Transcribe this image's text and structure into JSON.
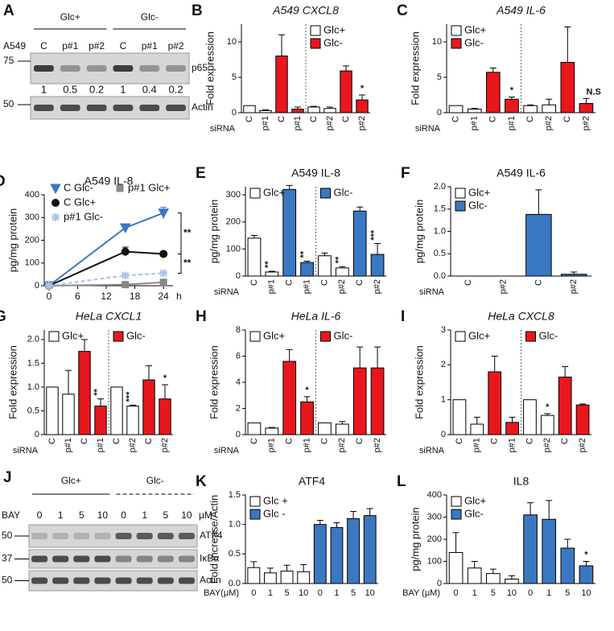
{
  "blots": [
    {
      "label": "A",
      "cell_line": "A549",
      "groups": [
        "Glc+",
        "Glc-"
      ],
      "lanes": [
        "C",
        "p#1",
        "p#2",
        "C",
        "p#1",
        "p#2"
      ],
      "markers": [
        75,
        50
      ],
      "bands": [
        "p65",
        "Actin"
      ],
      "quant": [
        1,
        0.5,
        0.2,
        1,
        0.4,
        0.2
      ]
    },
    {
      "label": "J",
      "treatment": "BAY",
      "groups": [
        "Glc+",
        "Glc-"
      ],
      "lanes": [
        0,
        1,
        5,
        10,
        0,
        1,
        5,
        10
      ],
      "unit": "μM",
      "markers": [
        50,
        37,
        50
      ],
      "bands": [
        "ATF4",
        "IκBα",
        "Actin"
      ]
    }
  ],
  "chart_data": [
    {
      "label": "B",
      "type": "bar",
      "title": "A549 CXCL8",
      "title_style": "italic",
      "ylabel": "Fold expression",
      "xlabel": "siRNA",
      "xtick_rotation": 90,
      "divider": true,
      "legend": "upper right",
      "legend_orient": "vertical",
      "categories": [
        "C",
        "p#1",
        "C",
        "p#1",
        "C",
        "p#2",
        "C",
        "p#2"
      ],
      "ylim": [
        0,
        12.5
      ],
      "yticks": [
        0,
        5,
        10
      ],
      "series": [
        {
          "name": "Glc+",
          "color": "#ffffff",
          "values": [
            1.0,
            0.3,
            null,
            null,
            0.8,
            0.6,
            null,
            null
          ],
          "errors": [
            0,
            0.1,
            null,
            null,
            0.1,
            0.2,
            null,
            null
          ]
        },
        {
          "name": "Glc-",
          "color": "#e8171d",
          "values": [
            null,
            null,
            8,
            0.5,
            null,
            null,
            5.9,
            1.8
          ],
          "errors": [
            null,
            null,
            3,
            0.3,
            null,
            null,
            0.7,
            0.7
          ],
          "sig": [
            null,
            null,
            null,
            null,
            null,
            null,
            null,
            "*"
          ]
        }
      ]
    },
    {
      "label": "C",
      "type": "bar",
      "title": "A549 IL-6",
      "title_style": "italic",
      "ylabel": "Fold expression",
      "xlabel": "siRNA",
      "xtick_rotation": 90,
      "divider": true,
      "legend": "upper left",
      "legend_orient": "vertical",
      "categories": [
        "C",
        "p#1",
        "C",
        "p#1",
        "C",
        "p#2",
        "C",
        "p#2"
      ],
      "ylim": [
        0,
        12.5
      ],
      "yticks": [
        0,
        5,
        10
      ],
      "series": [
        {
          "name": "Glc+",
          "color": "#ffffff",
          "values": [
            1.0,
            0.5,
            null,
            null,
            1.0,
            1.1,
            null,
            null
          ],
          "errors": [
            0,
            0.1,
            null,
            null,
            0.1,
            0.8,
            null,
            null
          ]
        },
        {
          "name": "Glc-",
          "color": "#e8171d",
          "values": [
            null,
            null,
            5.7,
            1.9,
            null,
            null,
            7.1,
            1.3
          ],
          "errors": [
            null,
            null,
            0.6,
            0.3,
            null,
            null,
            5,
            0.7
          ],
          "sig": [
            null,
            null,
            null,
            "*",
            null,
            null,
            null,
            "N.S"
          ]
        }
      ]
    },
    {
      "label": "D",
      "type": "line",
      "title": "A549 IL-8",
      "ylabel": "pg/mg protein",
      "xlabel": "h",
      "xlim": [
        -1,
        26
      ],
      "xticks": [
        0,
        6,
        12,
        18,
        24
      ],
      "ylim": [
        0,
        400
      ],
      "yticks": [
        0,
        100,
        200,
        300,
        400
      ],
      "x": [
        0,
        16,
        24
      ],
      "annotations": [
        "**",
        "**"
      ],
      "series": [
        {
          "name": "C Glc-",
          "color": "#3a78c2",
          "marker": "triangle",
          "dash": false,
          "values": [
            0,
            255,
            320
          ],
          "errors": [
            0,
            10,
            25
          ]
        },
        {
          "name": "C Glc+",
          "color": "#111111",
          "marker": "circle",
          "dash": false,
          "values": [
            0,
            150,
            140
          ],
          "errors": [
            0,
            20,
            10
          ]
        },
        {
          "name": "p#1 Glc+",
          "color": "#888888",
          "marker": "square",
          "dash": false,
          "values": [
            0,
            5,
            15
          ],
          "errors": [
            0,
            3,
            5
          ]
        },
        {
          "name": "p#1 Glc-",
          "color": "#a9c4e6",
          "marker": "star",
          "dash": true,
          "values": [
            0,
            45,
            55
          ],
          "errors": [
            0,
            5,
            5
          ]
        }
      ]
    },
    {
      "label": "E",
      "type": "bar",
      "title": "A549 IL-8",
      "ylabel": "pg/mg protein",
      "xlabel": "siRNA",
      "xtick_rotation": 90,
      "divider": true,
      "legend": "upper left",
      "legend_orient": "horizontal",
      "categories": [
        "C",
        "p#1",
        "C",
        "p#1",
        "C",
        "p#2",
        "C",
        "p#2"
      ],
      "ylim": [
        0,
        330
      ],
      "yticks": [
        0,
        100,
        200,
        300
      ],
      "series": [
        {
          "name": "Glc+",
          "color": "#ffffff",
          "values": [
            140,
            15,
            null,
            null,
            75,
            30,
            null,
            null
          ],
          "errors": [
            10,
            3,
            null,
            null,
            10,
            5,
            null,
            null
          ],
          "sig": [
            null,
            "**",
            null,
            null,
            null,
            "**",
            null,
            null
          ]
        },
        {
          "name": "Glc-",
          "color": "#3a78c2",
          "values": [
            null,
            null,
            320,
            50,
            null,
            null,
            240,
            80
          ],
          "errors": [
            null,
            null,
            15,
            5,
            null,
            null,
            15,
            40
          ],
          "sig": [
            null,
            null,
            null,
            "**",
            null,
            null,
            null,
            "***"
          ]
        }
      ]
    },
    {
      "label": "F",
      "type": "bar",
      "title": "A549 IL-6",
      "ylabel": "pg/mg protein",
      "xlabel": "siRNA",
      "xtick_rotation": 90,
      "divider": false,
      "legend": "upper left",
      "legend_orient": "vertical",
      "categories": [
        "C",
        "p#2",
        "C",
        "p#2"
      ],
      "ylim": [
        0,
        2
      ],
      "yticks": [
        {
          "value": 0,
          "label": "0.0"
        },
        0.5,
        {
          "value": 1,
          "label": "1.0"
        },
        1.5,
        {
          "value": 2,
          "label": "2.0"
        }
      ],
      "series": [
        {
          "name": "Glc+",
          "color": "#ffffff",
          "values": [
            0,
            0,
            null,
            null
          ],
          "errors": [
            0,
            0,
            null,
            null
          ]
        },
        {
          "name": "Glc-",
          "color": "#3a78c2",
          "values": [
            null,
            null,
            1.38,
            0.04
          ],
          "errors": [
            null,
            null,
            0.55,
            0.05
          ]
        }
      ]
    },
    {
      "label": "G",
      "type": "bar",
      "title": "HeLa CXCL1",
      "title_style": "italic",
      "ylabel": "Fold expression",
      "xlabel": "siRNA",
      "xtick_rotation": 90,
      "divider": true,
      "legend": "upper left",
      "legend_orient": "horizontal",
      "categories": [
        "C",
        "p#1",
        "C",
        "p#1",
        "C",
        "p#2",
        "C",
        "p#2"
      ],
      "ylim": [
        0,
        2.2
      ],
      "yticks": [
        0,
        0.5,
        {
          "value": 1,
          "label": "1.0"
        },
        1.5,
        {
          "value": 2,
          "label": "2.0"
        }
      ],
      "series": [
        {
          "name": "Glc+",
          "color": "#ffffff",
          "values": [
            1.0,
            0.85,
            null,
            null,
            1.0,
            0.6,
            null,
            null
          ],
          "errors": [
            0,
            0.5,
            null,
            null,
            0,
            0.02,
            null,
            null
          ],
          "sig": [
            null,
            null,
            null,
            null,
            null,
            "***",
            null,
            null
          ]
        },
        {
          "name": "Glc-",
          "color": "#e8171d",
          "values": [
            null,
            null,
            1.75,
            0.6,
            null,
            null,
            1.15,
            0.75
          ],
          "errors": [
            null,
            null,
            0.25,
            0.15,
            null,
            null,
            0.3,
            0.3
          ],
          "sig": [
            null,
            null,
            null,
            "**",
            null,
            null,
            null,
            "*"
          ]
        }
      ]
    },
    {
      "label": "H",
      "type": "bar",
      "title": "HeLa IL-6",
      "title_style": "italic",
      "ylabel": "Fold expression",
      "xlabel": "siRNA",
      "xtick_rotation": 90,
      "divider": true,
      "legend": "upper left",
      "legend_orient": "horizontal",
      "categories": [
        "C",
        "p#1",
        "C",
        "p#1",
        "C",
        "p#2",
        "C",
        "p#2"
      ],
      "ylim": [
        0,
        8
      ],
      "yticks": [
        0,
        2,
        4,
        6,
        8
      ],
      "series": [
        {
          "name": "Glc+",
          "color": "#ffffff",
          "values": [
            0.9,
            0.5,
            null,
            null,
            0.9,
            0.8,
            null,
            null
          ],
          "errors": [
            0,
            0.05,
            null,
            null,
            0,
            0.2,
            null,
            null
          ]
        },
        {
          "name": "Glc-",
          "color": "#e8171d",
          "values": [
            null,
            null,
            5.6,
            2.5,
            null,
            null,
            5.1,
            5.1
          ],
          "errors": [
            null,
            null,
            0.9,
            0.4,
            null,
            null,
            1.6,
            1.6
          ],
          "sig": [
            null,
            null,
            null,
            "*",
            null,
            null,
            null,
            null
          ]
        }
      ]
    },
    {
      "label": "I",
      "type": "bar",
      "title": "HeLa CXCL8",
      "title_style": "italic",
      "ylabel": "Fold expression",
      "xlabel": "siRNA",
      "xtick_rotation": 90,
      "divider": true,
      "legend": "upper left",
      "legend_orient": "horizontal",
      "categories": [
        "C",
        "p#1",
        "C",
        "p#1",
        "C",
        "p#2",
        "C",
        "p#2"
      ],
      "ylim": [
        0,
        3
      ],
      "yticks": [
        0,
        1,
        2,
        3
      ],
      "series": [
        {
          "name": "Glc+",
          "color": "#ffffff",
          "values": [
            1.0,
            0.3,
            null,
            null,
            1.0,
            0.55,
            null,
            null
          ],
          "errors": [
            0,
            0.2,
            null,
            null,
            0,
            0.05,
            null,
            null
          ],
          "sig": [
            null,
            null,
            null,
            null,
            null,
            "*",
            null,
            null
          ]
        },
        {
          "name": "Glc-",
          "color": "#e8171d",
          "values": [
            null,
            null,
            1.8,
            0.35,
            null,
            null,
            1.65,
            0.85
          ],
          "errors": [
            null,
            null,
            0.45,
            0.15,
            null,
            null,
            0.3,
            0.03
          ]
        }
      ]
    },
    {
      "label": "K",
      "type": "bar",
      "title": "ATF4",
      "ylabel": "Fold increase/Actin",
      "xlabel": "BAY(μM)",
      "xtick_rotation": 0,
      "divider": false,
      "legend": "upper left",
      "legend_orient": "vertical",
      "categories": [
        "0",
        "1",
        "5",
        "10",
        "0",
        "1",
        "5",
        "10"
      ],
      "ylim": [
        0,
        1.5
      ],
      "yticks": [
        {
          "value": 0,
          "label": "0.0"
        },
        0.5,
        {
          "value": 1,
          "label": "1.0"
        },
        1.5
      ],
      "series": [
        {
          "name": "Glc +",
          "color": "#ffffff",
          "values": [
            0.27,
            0.18,
            0.21,
            0.2,
            null,
            null,
            null,
            null
          ],
          "errors": [
            0.1,
            0.08,
            0.1,
            0.12,
            null,
            null,
            null,
            null
          ]
        },
        {
          "name": "Glc -",
          "color": "#3a78c2",
          "values": [
            null,
            null,
            null,
            null,
            1.0,
            0.95,
            1.1,
            1.15
          ],
          "errors": [
            null,
            null,
            null,
            null,
            0.07,
            0.08,
            0.12,
            0.12
          ]
        }
      ]
    },
    {
      "label": "L",
      "type": "bar",
      "title": "IL8",
      "ylabel": "pg/mg protein",
      "xlabel": "BAY (μM)",
      "xtick_rotation": 0,
      "divider": false,
      "legend": "upper left",
      "legend_orient": "vertical",
      "categories": [
        "0",
        "1",
        "5",
        "10",
        "0",
        "1",
        "5",
        "10"
      ],
      "ylim": [
        0,
        400
      ],
      "yticks": [
        0,
        100,
        200,
        300,
        400
      ],
      "series": [
        {
          "name": "Glc+",
          "color": "#ffffff",
          "values": [
            140,
            70,
            45,
            20,
            null,
            null,
            null,
            null
          ],
          "errors": [
            90,
            30,
            20,
            15,
            null,
            null,
            null,
            null
          ]
        },
        {
          "name": "Glc-",
          "color": "#3a78c2",
          "values": [
            null,
            null,
            null,
            null,
            310,
            290,
            160,
            80
          ],
          "errors": [
            null,
            null,
            null,
            null,
            55,
            85,
            40,
            20
          ],
          "sig": [
            null,
            null,
            null,
            null,
            null,
            null,
            null,
            "*"
          ]
        }
      ]
    }
  ]
}
